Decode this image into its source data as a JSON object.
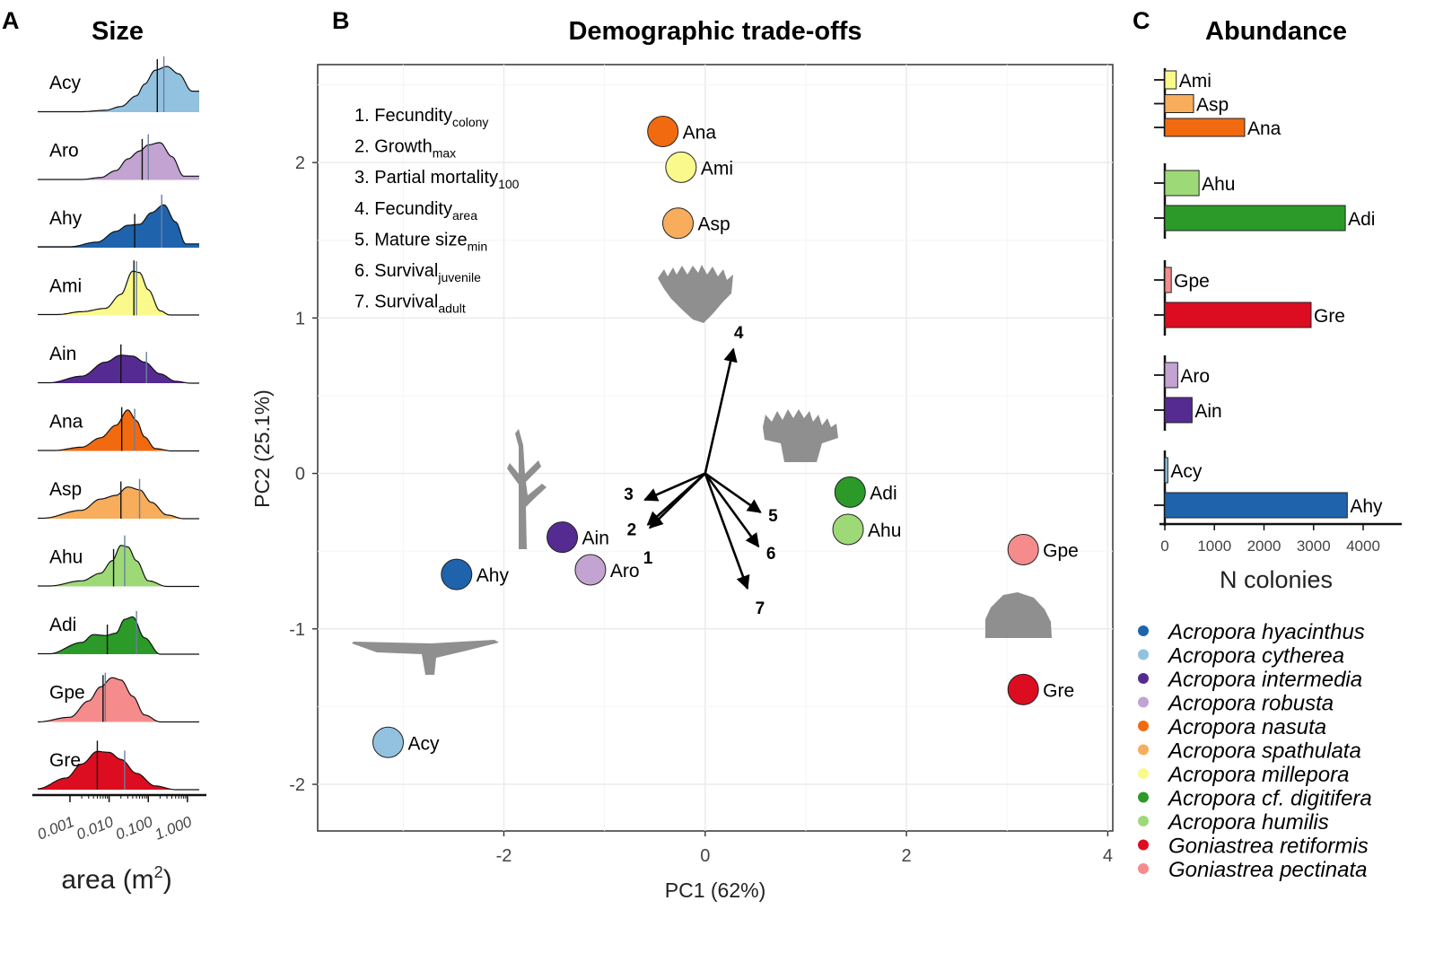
{
  "panels": {
    "a": {
      "letter": "A",
      "title": "Size",
      "xlabel": "area (m",
      "xlabel_sup": "2",
      "xlabel_close": ")"
    },
    "b": {
      "letter": "B",
      "title": "Demographic trade-offs",
      "xlabel": "PC1 (62%)",
      "ylabel": "PC2 (25.1%)"
    },
    "c": {
      "letter": "C",
      "title": "Abundance",
      "xlabel": "N colonies"
    }
  },
  "colors": {
    "Acy": "#92c2e0",
    "Aro": "#c3a3d1",
    "Ahy": "#1e63ac",
    "Ami": "#fafa8c",
    "Ain": "#552b91",
    "Ana": "#f26a10",
    "Asp": "#f7ad5c",
    "Ahu": "#9ed978",
    "Adi": "#2b9a28",
    "Gpe": "#f58b8b",
    "Gre": "#dc0d20"
  },
  "chart_data": [
    {
      "type": "area",
      "name": "Size density ridges",
      "x_scale": "log",
      "x_ticks": [
        0.001,
        0.01,
        0.1,
        1.0
      ],
      "x_tick_labels": [
        "0.001",
        "0.010",
        "0.100",
        "1.000"
      ],
      "xlim": [
        0.00015,
        2
      ],
      "series": [
        {
          "code": "Acy",
          "x": [
            0.002,
            0.008,
            0.02,
            0.05,
            0.08,
            0.15,
            0.3,
            0.6,
            1.3
          ],
          "y": [
            0.01,
            0.04,
            0.12,
            0.35,
            0.6,
            0.9,
            0.98,
            0.82,
            0.45
          ],
          "median": 0.17,
          "mean": 0.25
        },
        {
          "code": "Aro",
          "x": [
            0.002,
            0.006,
            0.015,
            0.03,
            0.06,
            0.1,
            0.2,
            0.4,
            0.8
          ],
          "y": [
            0.01,
            0.05,
            0.2,
            0.45,
            0.62,
            0.75,
            0.8,
            0.5,
            0.08
          ],
          "median": 0.07,
          "mean": 0.1
        },
        {
          "code": "Ahy",
          "x": [
            0.001,
            0.005,
            0.015,
            0.03,
            0.06,
            0.12,
            0.25,
            0.5,
            0.9
          ],
          "y": [
            0.02,
            0.12,
            0.35,
            0.48,
            0.5,
            0.75,
            0.92,
            0.55,
            0.08
          ],
          "median": 0.045,
          "mean": 0.22
        },
        {
          "code": "Ami",
          "x": [
            0.0005,
            0.002,
            0.008,
            0.02,
            0.04,
            0.06,
            0.1,
            0.2,
            0.35
          ],
          "y": [
            0.02,
            0.08,
            0.15,
            0.45,
            0.95,
            0.92,
            0.55,
            0.1,
            0.01
          ],
          "median": 0.043,
          "mean": 0.05
        },
        {
          "code": "Ain",
          "x": [
            0.0003,
            0.002,
            0.008,
            0.02,
            0.04,
            0.08,
            0.2,
            0.5,
            1.2
          ],
          "y": [
            0.01,
            0.15,
            0.45,
            0.6,
            0.58,
            0.45,
            0.2,
            0.04,
            0.0
          ],
          "median": 0.02,
          "mean": 0.09
        },
        {
          "code": "Ana",
          "x": [
            0.0004,
            0.002,
            0.006,
            0.015,
            0.03,
            0.05,
            0.08,
            0.15,
            0.4
          ],
          "y": [
            0.01,
            0.08,
            0.28,
            0.55,
            0.88,
            0.65,
            0.3,
            0.05,
            0.0
          ],
          "median": 0.021,
          "mean": 0.045
        },
        {
          "code": "Asp",
          "x": [
            0.0002,
            0.002,
            0.006,
            0.015,
            0.03,
            0.06,
            0.12,
            0.3,
            0.8
          ],
          "y": [
            0.01,
            0.18,
            0.42,
            0.5,
            0.68,
            0.62,
            0.35,
            0.08,
            0.0
          ],
          "median": 0.02,
          "mean": 0.06
        },
        {
          "code": "Ahu",
          "x": [
            0.0003,
            0.002,
            0.006,
            0.012,
            0.02,
            0.03,
            0.05,
            0.1,
            0.3
          ],
          "y": [
            0.01,
            0.12,
            0.28,
            0.55,
            0.88,
            0.85,
            0.55,
            0.12,
            0.0
          ],
          "median": 0.013,
          "mean": 0.025
        },
        {
          "code": "Adi",
          "x": [
            0.0003,
            0.002,
            0.004,
            0.008,
            0.015,
            0.025,
            0.04,
            0.08,
            0.2
          ],
          "y": [
            0.01,
            0.25,
            0.42,
            0.4,
            0.45,
            0.75,
            0.8,
            0.35,
            0.0
          ],
          "median": 0.009,
          "mean": 0.05
        },
        {
          "code": "Gpe",
          "x": [
            0.00015,
            0.001,
            0.003,
            0.006,
            0.012,
            0.02,
            0.04,
            0.08,
            0.2
          ],
          "y": [
            0.0,
            0.1,
            0.45,
            0.75,
            0.95,
            0.9,
            0.55,
            0.15,
            0.0
          ],
          "median": 0.007,
          "mean": 0.008
        },
        {
          "code": "Gre",
          "x": [
            0.00015,
            0.0008,
            0.002,
            0.005,
            0.01,
            0.02,
            0.05,
            0.15,
            0.5
          ],
          "y": [
            0.02,
            0.25,
            0.55,
            0.82,
            0.8,
            0.65,
            0.35,
            0.08,
            0.0
          ],
          "median": 0.005,
          "mean": 0.025
        }
      ]
    },
    {
      "type": "scatter",
      "name": "PCA biplot",
      "xlim": [
        -3.85,
        4.05
      ],
      "ylim": [
        -2.3,
        2.63
      ],
      "x_ticks": [
        -2,
        0,
        2,
        4
      ],
      "y_ticks": [
        -2,
        -1,
        0,
        1,
        2
      ],
      "points": [
        {
          "code": "Ana",
          "x": -0.42,
          "y": 2.2
        },
        {
          "code": "Ami",
          "x": -0.24,
          "y": 1.97
        },
        {
          "code": "Asp",
          "x": -0.27,
          "y": 1.61
        },
        {
          "code": "Ain",
          "x": -1.42,
          "y": -0.41
        },
        {
          "code": "Aro",
          "x": -1.14,
          "y": -0.62
        },
        {
          "code": "Ahy",
          "x": -2.47,
          "y": -0.65
        },
        {
          "code": "Acy",
          "x": -3.15,
          "y": -1.73
        },
        {
          "code": "Adi",
          "x": 1.44,
          "y": -0.12
        },
        {
          "code": "Ahu",
          "x": 1.42,
          "y": -0.36
        },
        {
          "code": "Gpe",
          "x": 3.16,
          "y": -0.49
        },
        {
          "code": "Gre",
          "x": 3.16,
          "y": -1.39
        }
      ],
      "loadings": [
        {
          "id": "1",
          "x": -0.55,
          "y": -0.35
        },
        {
          "id": "2",
          "x": -0.57,
          "y": -0.33
        },
        {
          "id": "3",
          "x": -0.6,
          "y": -0.17
        },
        {
          "id": "4",
          "x": 0.28,
          "y": 0.8
        },
        {
          "id": "5",
          "x": 0.55,
          "y": -0.25
        },
        {
          "id": "6",
          "x": 0.53,
          "y": -0.47
        },
        {
          "id": "7",
          "x": 0.42,
          "y": -0.74
        }
      ],
      "variables": [
        {
          "n": "1. Fecundity",
          "sub": "colony"
        },
        {
          "n": "2. Growth",
          "sub": "max"
        },
        {
          "n": "3. Partial mortality",
          "sub": "100"
        },
        {
          "n": "4. Fecundity",
          "sub": "area"
        },
        {
          "n": "5. Mature size",
          "sub": "min"
        },
        {
          "n": "6. Survival",
          "sub": "juvenile"
        },
        {
          "n": "7. Survival",
          "sub": "adult"
        }
      ]
    },
    {
      "type": "bar",
      "name": "Abundance",
      "orientation": "horizontal",
      "x_ticks": [
        0,
        1000,
        2000,
        3000,
        4000
      ],
      "x_tick_labels": [
        "0",
        "1000",
        "2000",
        "3000",
        "4000"
      ],
      "xlim": [
        0,
        4700
      ],
      "groups": [
        [
          {
            "code": "Ami",
            "value": 230
          },
          {
            "code": "Asp",
            "value": 580
          },
          {
            "code": "Ana",
            "value": 1610
          }
        ],
        [
          {
            "code": "Ahu",
            "value": 690
          },
          {
            "code": "Adi",
            "value": 3640
          }
        ],
        [
          {
            "code": "Gpe",
            "value": 130
          },
          {
            "code": "Gre",
            "value": 2950
          }
        ],
        [
          {
            "code": "Aro",
            "value": 260
          },
          {
            "code": "Ain",
            "value": 550
          }
        ],
        [
          {
            "code": "Acy",
            "value": 60
          },
          {
            "code": "Ahy",
            "value": 3680
          }
        ]
      ]
    }
  ],
  "legend": [
    {
      "code": "Ahy",
      "name": "Acropora hyacinthus"
    },
    {
      "code": "Acy",
      "name": "Acropora cytherea"
    },
    {
      "code": "Ain",
      "name": "Acropora intermedia"
    },
    {
      "code": "Aro",
      "name": "Acropora robusta"
    },
    {
      "code": "Ana",
      "name": "Acropora nasuta"
    },
    {
      "code": "Asp",
      "name": "Acropora spathulata"
    },
    {
      "code": "Ami",
      "name": "Acropora millepora"
    },
    {
      "code": "Adi",
      "name": "Acropora cf. digitifera"
    },
    {
      "code": "Ahu",
      "name": "Acropora humilis"
    },
    {
      "code": "Gre",
      "name": "Goniastrea retiformis"
    },
    {
      "code": "Gpe",
      "name": "Goniastrea pectinata"
    }
  ]
}
